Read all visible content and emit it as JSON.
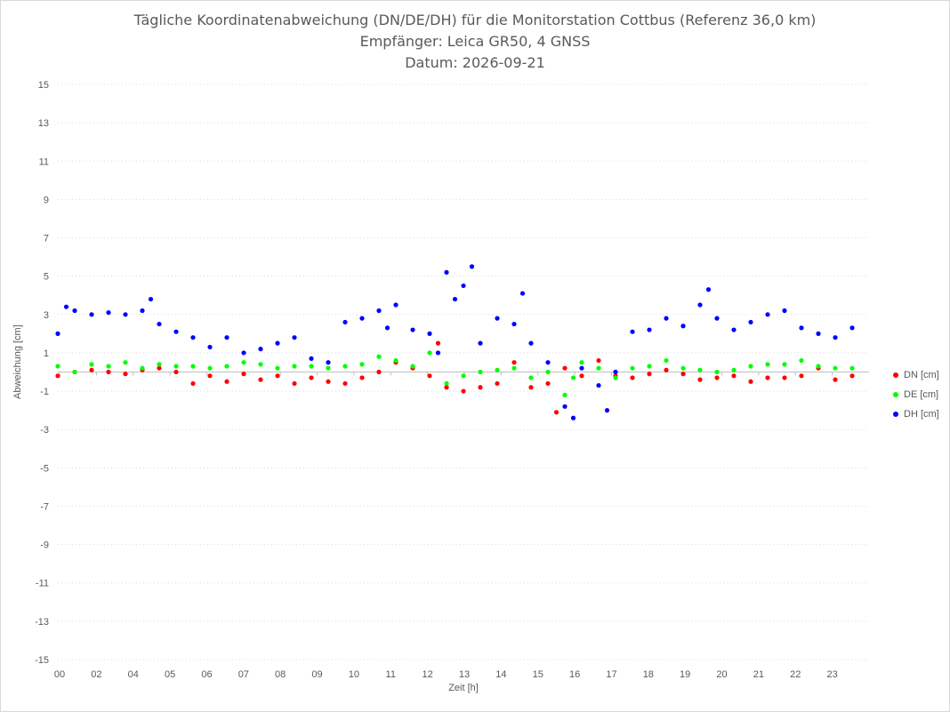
{
  "title_lines": [
    "Tägliche Koordinatenabweichung (DN/DE/DH) für die Monitorstation Cottbus (Referenz 36,0 km)",
    "Empfänger: Leica GR50, 4 GNSS",
    "Datum: 2026-09-21"
  ],
  "chart_data": {
    "type": "scatter",
    "title": "Tägliche Koordinatenabweichung (DN/DE/DH) für die Monitorstation Cottbus (Referenz 36,0 km)",
    "xlabel": "Zeit [h]",
    "ylabel": "Abweichung [cm]",
    "xlim": [
      0,
      24
    ],
    "ylim": [
      -15,
      15
    ],
    "xticks": [
      "00",
      "02",
      "04",
      "05",
      "06",
      "07",
      "08",
      "09",
      "10",
      "11",
      "12",
      "13",
      "14",
      "15",
      "16",
      "17",
      "18",
      "19",
      "20",
      "21",
      "22",
      "23"
    ],
    "yticks": [
      15,
      13,
      11,
      9,
      7,
      5,
      3,
      1,
      -1,
      -3,
      -5,
      -7,
      -9,
      -11,
      -13,
      -15
    ],
    "grid": "horizontal-dotted",
    "legend_position": "right",
    "series": [
      {
        "name": "DN [cm]",
        "color": "#ff0000",
        "x": [
          0.0,
          0.5,
          1.0,
          1.5,
          2.0,
          2.5,
          3.0,
          3.5,
          4.0,
          4.5,
          5.0,
          5.5,
          6.0,
          6.5,
          7.0,
          7.5,
          8.0,
          8.5,
          9.0,
          9.5,
          10.0,
          10.5,
          11.0,
          11.25,
          11.5,
          12.0,
          12.5,
          13.0,
          13.5,
          14.0,
          14.5,
          14.75,
          15.0,
          15.5,
          16.0,
          16.5,
          17.0,
          17.5,
          18.0,
          18.5,
          19.0,
          19.5,
          20.0,
          20.5,
          21.0,
          21.5,
          22.0,
          22.5,
          23.0,
          23.5
        ],
        "y": [
          -0.2,
          0.0,
          0.1,
          0.0,
          -0.1,
          0.1,
          0.2,
          0.0,
          -0.6,
          -0.2,
          -0.5,
          -0.1,
          -0.4,
          -0.2,
          -0.6,
          -0.3,
          -0.5,
          -0.6,
          -0.3,
          0.0,
          0.5,
          0.2,
          -0.2,
          1.5,
          -0.8,
          -1.0,
          -0.8,
          -0.6,
          0.5,
          -0.8,
          -0.6,
          -2.1,
          0.2,
          -0.2,
          0.6,
          -0.2,
          -0.3,
          -0.1,
          0.1,
          -0.1,
          -0.4,
          -0.3,
          -0.2,
          -0.5,
          -0.3,
          -0.3,
          -0.2,
          0.2,
          -0.4,
          -0.2
        ]
      },
      {
        "name": "DE [cm]",
        "color": "#00ff00",
        "x": [
          0.0,
          0.5,
          1.0,
          1.5,
          2.0,
          2.5,
          3.0,
          3.5,
          4.0,
          4.5,
          5.0,
          5.5,
          6.0,
          6.5,
          7.0,
          7.5,
          8.0,
          8.5,
          9.0,
          9.5,
          10.0,
          10.5,
          11.0,
          11.5,
          12.0,
          12.5,
          13.0,
          13.5,
          14.0,
          14.5,
          15.0,
          15.25,
          15.5,
          16.0,
          16.5,
          17.0,
          17.5,
          18.0,
          18.5,
          19.0,
          19.5,
          20.0,
          20.5,
          21.0,
          21.5,
          22.0,
          22.5,
          23.0,
          23.5
        ],
        "y": [
          0.3,
          0.0,
          0.4,
          0.3,
          0.5,
          0.2,
          0.4,
          0.3,
          0.3,
          0.2,
          0.3,
          0.5,
          0.4,
          0.2,
          0.3,
          0.3,
          0.2,
          0.3,
          0.4,
          0.8,
          0.6,
          0.3,
          1.0,
          -0.6,
          -0.2,
          0.0,
          0.1,
          0.2,
          -0.3,
          0.0,
          -1.2,
          -0.3,
          0.5,
          0.2,
          -0.3,
          0.2,
          0.3,
          0.6,
          0.2,
          0.1,
          0.0,
          0.1,
          0.3,
          0.4,
          0.4,
          0.6,
          0.3,
          0.2,
          0.2
        ]
      },
      {
        "name": "DH [cm]",
        "color": "#0000ff",
        "x": [
          0.0,
          0.25,
          0.5,
          1.0,
          1.5,
          2.0,
          2.5,
          2.75,
          3.0,
          3.5,
          4.0,
          4.5,
          5.0,
          5.5,
          6.0,
          6.5,
          7.0,
          7.5,
          8.0,
          8.5,
          9.0,
          9.5,
          9.75,
          10.0,
          10.5,
          11.0,
          11.25,
          11.5,
          11.75,
          12.0,
          12.25,
          12.5,
          13.0,
          13.5,
          13.75,
          14.0,
          14.5,
          15.0,
          15.25,
          15.5,
          16.0,
          16.25,
          16.5,
          17.0,
          17.5,
          18.0,
          18.5,
          19.0,
          19.25,
          19.5,
          20.0,
          20.5,
          21.0,
          21.5,
          22.0,
          22.5,
          23.0,
          23.5
        ],
        "y": [
          2.0,
          3.4,
          3.2,
          3.0,
          3.1,
          3.0,
          3.2,
          3.8,
          2.5,
          2.1,
          1.8,
          1.3,
          1.8,
          1.0,
          1.2,
          1.5,
          1.8,
          0.7,
          0.5,
          2.6,
          2.8,
          3.2,
          2.3,
          3.5,
          2.2,
          2.0,
          1.0,
          5.2,
          3.8,
          4.5,
          5.5,
          1.5,
          2.8,
          2.5,
          4.1,
          1.5,
          0.5,
          -1.8,
          -2.4,
          0.2,
          -0.7,
          -2.0,
          0.0,
          2.1,
          2.2,
          2.8,
          2.4,
          3.5,
          4.3,
          2.8,
          2.2,
          2.6,
          3.0,
          3.2,
          2.3,
          2.0,
          1.8,
          2.3
        ]
      }
    ]
  }
}
